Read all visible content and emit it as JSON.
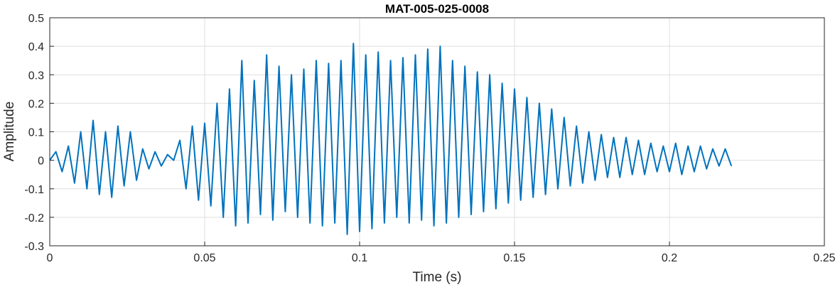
{
  "chart_data": {
    "type": "line",
    "title": "MAT-005-025-0008",
    "xlabel": "Time (s)",
    "ylabel": "Amplitude",
    "xlim": [
      0,
      0.25
    ],
    "ylim": [
      -0.3,
      0.5
    ],
    "xticks": [
      0,
      0.05,
      0.1,
      0.15,
      0.2,
      0.25
    ],
    "xtick_labels": [
      "0",
      "0.05",
      "0.1",
      "0.15",
      "0.2",
      "0.25"
    ],
    "yticks": [
      -0.3,
      -0.2,
      -0.1,
      0,
      0.1,
      0.2,
      0.3,
      0.4,
      0.5
    ],
    "ytick_labels": [
      "-0.3",
      "-0.2",
      "-0.1",
      "0",
      "0.1",
      "0.2",
      "0.3",
      "0.4",
      "0.5"
    ],
    "grid": true,
    "line_color": "#0072BD",
    "series": [
      {
        "x": [
          0,
          0.002,
          0.004,
          0.006,
          0.008,
          0.01,
          0.012,
          0.014,
          0.016,
          0.018,
          0.02,
          0.022,
          0.024,
          0.026,
          0.028,
          0.03,
          0.032,
          0.034,
          0.036,
          0.038,
          0.04,
          0.042,
          0.044,
          0.046,
          0.048,
          0.05,
          0.052,
          0.054,
          0.056,
          0.058,
          0.06,
          0.062,
          0.064,
          0.066,
          0.068,
          0.07,
          0.072,
          0.074,
          0.076,
          0.078,
          0.08,
          0.082,
          0.084,
          0.086,
          0.088,
          0.09,
          0.092,
          0.094,
          0.096,
          0.098,
          0.1,
          0.102,
          0.104,
          0.106,
          0.108,
          0.11,
          0.112,
          0.114,
          0.116,
          0.118,
          0.12,
          0.122,
          0.124,
          0.126,
          0.128,
          0.13,
          0.132,
          0.134,
          0.136,
          0.138,
          0.14,
          0.142,
          0.144,
          0.146,
          0.148,
          0.15,
          0.152,
          0.154,
          0.156,
          0.158,
          0.16,
          0.162,
          0.164,
          0.166,
          0.168,
          0.17,
          0.172,
          0.174,
          0.176,
          0.178,
          0.18,
          0.182,
          0.184,
          0.186,
          0.188,
          0.19,
          0.192,
          0.194,
          0.196,
          0.198,
          0.2,
          0.202,
          0.204,
          0.206,
          0.208,
          0.21,
          0.212,
          0.214,
          0.216,
          0.218,
          0.22
        ],
        "y": [
          0.0,
          0.03,
          -0.04,
          0.05,
          -0.08,
          0.1,
          -0.1,
          0.14,
          -0.12,
          0.1,
          -0.13,
          0.12,
          -0.09,
          0.1,
          -0.07,
          0.04,
          -0.03,
          0.03,
          -0.02,
          0.02,
          0.0,
          0.07,
          -0.1,
          0.12,
          -0.14,
          0.13,
          -0.16,
          0.2,
          -0.2,
          0.25,
          -0.23,
          0.35,
          -0.22,
          0.28,
          -0.19,
          0.37,
          -0.21,
          0.33,
          -0.18,
          0.3,
          -0.2,
          0.32,
          -0.22,
          0.35,
          -0.23,
          0.34,
          -0.22,
          0.35,
          -0.26,
          0.41,
          -0.25,
          0.37,
          -0.24,
          0.38,
          -0.22,
          0.35,
          -0.2,
          0.36,
          -0.22,
          0.37,
          -0.21,
          0.39,
          -0.23,
          0.4,
          -0.22,
          0.35,
          -0.2,
          0.33,
          -0.19,
          0.31,
          -0.18,
          0.3,
          -0.17,
          0.27,
          -0.15,
          0.25,
          -0.14,
          0.22,
          -0.13,
          0.2,
          -0.12,
          0.18,
          -0.1,
          0.15,
          -0.09,
          0.12,
          -0.08,
          0.1,
          -0.07,
          0.09,
          -0.06,
          0.08,
          -0.06,
          0.08,
          -0.05,
          0.07,
          -0.05,
          0.06,
          -0.04,
          0.05,
          -0.04,
          0.06,
          -0.05,
          0.05,
          -0.04,
          0.05,
          -0.03,
          0.04,
          -0.02,
          0.04,
          -0.02
        ]
      }
    ]
  }
}
